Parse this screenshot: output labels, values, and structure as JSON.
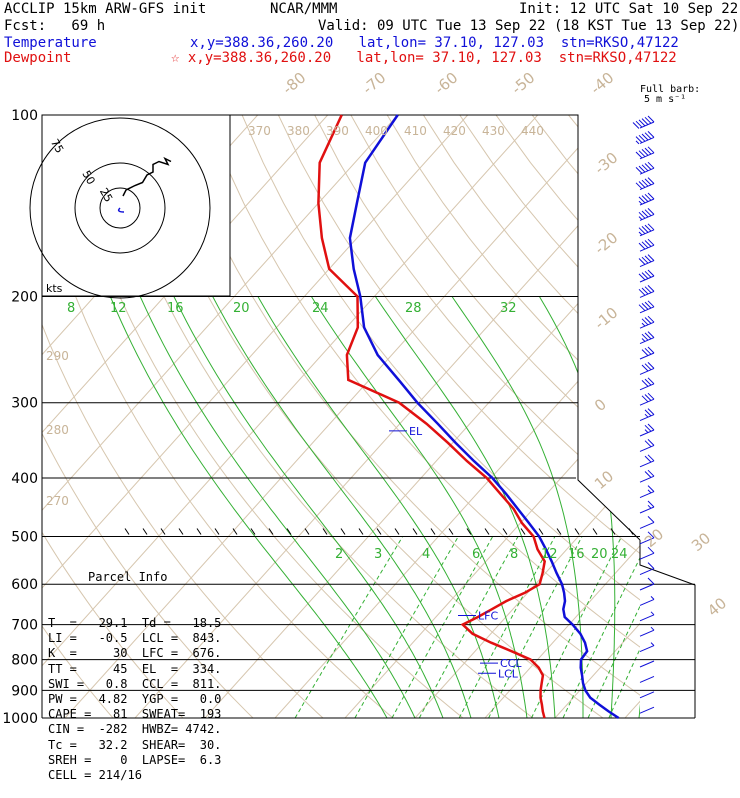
{
  "header": {
    "model": "ACCLIP 15km ARW-GFS init",
    "org": "NCAR/MMM",
    "init": "Init: 12 UTC Sat 10 Sep 22",
    "fcst": "Fcst:   69 h",
    "valid": "Valid: 09 UTC Tue 13 Sep 22 (18 KST Tue 13 Sep 22)",
    "temp_label": "Temperature",
    "temp_loc": "x,y=388.36,260.20   lat,lon= 37.10, 127.03  stn=RKSO,47122",
    "dew_label": "Dewpoint",
    "dew_loc": "x,y=388.36,260.20   lat,lon= 37.10, 127.03  stn=RKSO,47122",
    "full_barb": "Full barb:",
    "barb_unit": "5 m s⁻¹",
    "hodo_unit": "kts"
  },
  "parcel": {
    "title": "Parcel Info",
    "rows": [
      "T  =   29.1  Td =   18.5",
      "LI =   -0.5  LCL =  843.",
      "K  =     30  LFC =  676.",
      "TT =     45  EL  =  334.",
      "SWI =   0.8  CCL =  811.",
      "PW =   4.82  YGP =   0.0",
      "CAPE =   81  SWEAT=  193",
      "CIN =  -282  HWBZ= 4742.",
      "Tc =   32.2  SHEAR=  30.",
      "SREH =    0  LAPSE=  6.3",
      "CELL = 214/16"
    ]
  },
  "chart_data": {
    "type": "line",
    "title": "Skew-T log-P sounding",
    "ylabel": "Pressure (hPa)",
    "pressure_ticks": [
      "100",
      "200",
      "300",
      "400",
      "500",
      "600",
      "700",
      "800",
      "900",
      "1000"
    ],
    "isotherm_labels": [
      "-80",
      "-70",
      "-60",
      "-50",
      "-40",
      "-30",
      "-20",
      "-10",
      "0",
      "10",
      "20",
      "30",
      "40"
    ],
    "theta_labels": [
      "370",
      "380",
      "390",
      "400",
      "410",
      "420",
      "430",
      "440"
    ],
    "theta_side_labels": [
      "290",
      "280",
      "270"
    ],
    "mixing_ratio_labels_upper": [
      "8",
      "12",
      "16",
      "20",
      "24",
      "28",
      "32"
    ],
    "mixing_ratio_labels_lower": [
      "2",
      "3",
      "4",
      "6",
      "8",
      "12",
      "16",
      "20",
      "24"
    ],
    "hodograph_rings": [
      "25",
      "50",
      "75"
    ],
    "annotations": [
      {
        "label": "EL",
        "p": 334
      },
      {
        "label": "LFC",
        "p": 676
      },
      {
        "label": "CCL",
        "p": 811
      },
      {
        "label": "LCL",
        "p": 843
      }
    ],
    "series": [
      {
        "name": "Temperature",
        "color": "#1010d8",
        "p": [
          1000,
          975,
          950,
          925,
          900,
          875,
          850,
          825,
          800,
          775,
          750,
          725,
          700,
          680,
          660,
          640,
          620,
          600,
          575,
          550,
          525,
          500,
          475,
          450,
          425,
          400,
          375,
          350,
          325,
          300,
          275,
          250,
          225,
          200,
          180,
          160,
          140,
          120,
          100
        ],
        "t": [
          29.1,
          26.8,
          24.6,
          22.4,
          20.8,
          19.5,
          18.4,
          17.2,
          16.2,
          16.0,
          14.6,
          12.8,
          10.5,
          8.4,
          7.2,
          6.4,
          5.2,
          3.8,
          1.6,
          -0.6,
          -3.0,
          -5.6,
          -8.8,
          -12.2,
          -15.8,
          -19.8,
          -24.6,
          -29.5,
          -34.6,
          -40.2,
          -45.8,
          -52.0,
          -57.5,
          -62.0,
          -66.5,
          -71.0,
          -74.5,
          -78.5,
          -80.0
        ]
      },
      {
        "name": "Dewpoint",
        "color": "#e01010",
        "p": [
          1000,
          975,
          950,
          925,
          900,
          875,
          850,
          825,
          800,
          775,
          750,
          725,
          700,
          680,
          660,
          640,
          620,
          600,
          575,
          550,
          525,
          500,
          475,
          450,
          425,
          400,
          375,
          350,
          325,
          300,
          275,
          250,
          225,
          200,
          180,
          160,
          140,
          120,
          100
        ],
        "t": [
          18.5,
          17.4,
          16.4,
          15.3,
          14.4,
          13.6,
          12.8,
          11.2,
          9.0,
          5.2,
          1.2,
          -2.6,
          -5.2,
          -4.0,
          -3.0,
          -2.0,
          -0.4,
          0.6,
          -0.4,
          -1.6,
          -4.2,
          -6.4,
          -9.8,
          -12.8,
          -16.6,
          -20.6,
          -25.6,
          -30.6,
          -36.2,
          -42.8,
          -53.0,
          -56.4,
          -58.4,
          -62.4,
          -70.0,
          -75.0,
          -80.0,
          -85.0,
          -88.0
        ]
      }
    ],
    "hodograph_path_kts": [
      [
        2,
        8
      ],
      [
        4,
        12
      ],
      [
        10,
        15
      ],
      [
        15,
        17
      ],
      [
        18,
        22
      ],
      [
        22,
        24
      ],
      [
        22,
        29
      ],
      [
        24,
        30
      ],
      [
        26,
        31
      ],
      [
        32,
        29
      ],
      [
        30,
        33
      ],
      [
        34,
        31
      ]
    ],
    "hodograph_dew_path_kts": [
      [
        0,
        -2
      ],
      [
        5,
        5
      ],
      [
        10,
        10
      ],
      [
        25,
        20
      ],
      [
        35,
        40
      ],
      [
        45,
        65
      ]
    ],
    "wind_barbs_speed_ms": [
      30,
      28,
      27,
      26,
      25,
      24,
      24,
      23,
      22,
      22,
      21,
      20,
      20,
      19,
      18,
      17,
      17,
      16,
      15,
      14,
      13,
      12,
      11,
      10,
      9,
      8,
      7,
      6,
      6,
      5,
      5,
      4,
      4,
      3,
      3,
      2,
      2,
      2,
      1
    ]
  }
}
